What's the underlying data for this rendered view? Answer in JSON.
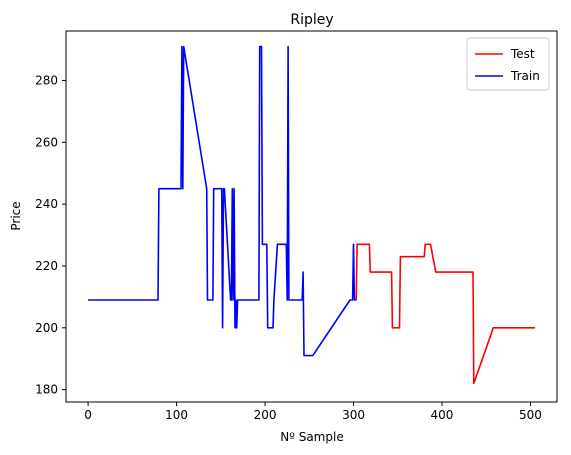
{
  "chart_data": {
    "type": "line",
    "title": "Ripley",
    "xlabel": "Nº Sample",
    "ylabel": "Price",
    "xlim": [
      -25,
      530
    ],
    "ylim": [
      176,
      296
    ],
    "xticks": [
      0,
      100,
      200,
      300,
      400,
      500
    ],
    "yticks": [
      180,
      200,
      220,
      240,
      260,
      280
    ],
    "grid": false,
    "legend_position": "top-right",
    "series": [
      {
        "name": "Test",
        "color": "#ff0000",
        "x": [
          303,
          304,
          305,
          318,
          319,
          343,
          344,
          348,
          352,
          353,
          380,
          381,
          387,
          393,
          398,
          435,
          436,
          458,
          505
        ],
        "y": [
          209,
          227,
          227,
          227,
          218,
          218,
          200,
          200,
          200,
          223,
          223,
          227,
          227,
          218,
          218,
          218,
          182,
          200,
          200
        ]
      },
      {
        "name": "Train",
        "color": "#0000ff",
        "x": [
          0,
          79,
          80,
          105,
          106,
          107,
          108,
          134,
          135,
          141,
          142,
          150,
          151,
          152,
          153,
          154,
          161,
          162,
          163,
          164,
          165,
          166,
          167,
          168,
          169,
          193,
          194,
          196,
          197,
          198,
          202,
          203,
          204,
          209,
          210,
          214,
          215,
          224,
          225,
          226,
          227,
          228,
          229,
          242,
          243,
          244,
          245,
          254,
          296,
          299,
          300,
          301,
          302,
          303
        ],
        "y": [
          209,
          209,
          245,
          245,
          291,
          245,
          291,
          245,
          209,
          209,
          245,
          245,
          245,
          200,
          245,
          245,
          209,
          209,
          245,
          209,
          245,
          200,
          209,
          200,
          209,
          209,
          291,
          291,
          227,
          227,
          227,
          200,
          200,
          200,
          209,
          227,
          227,
          227,
          209,
          291,
          209,
          209,
          209,
          209,
          218,
          191,
          191,
          191,
          209,
          209,
          227,
          209,
          209,
          209
        ]
      }
    ]
  }
}
